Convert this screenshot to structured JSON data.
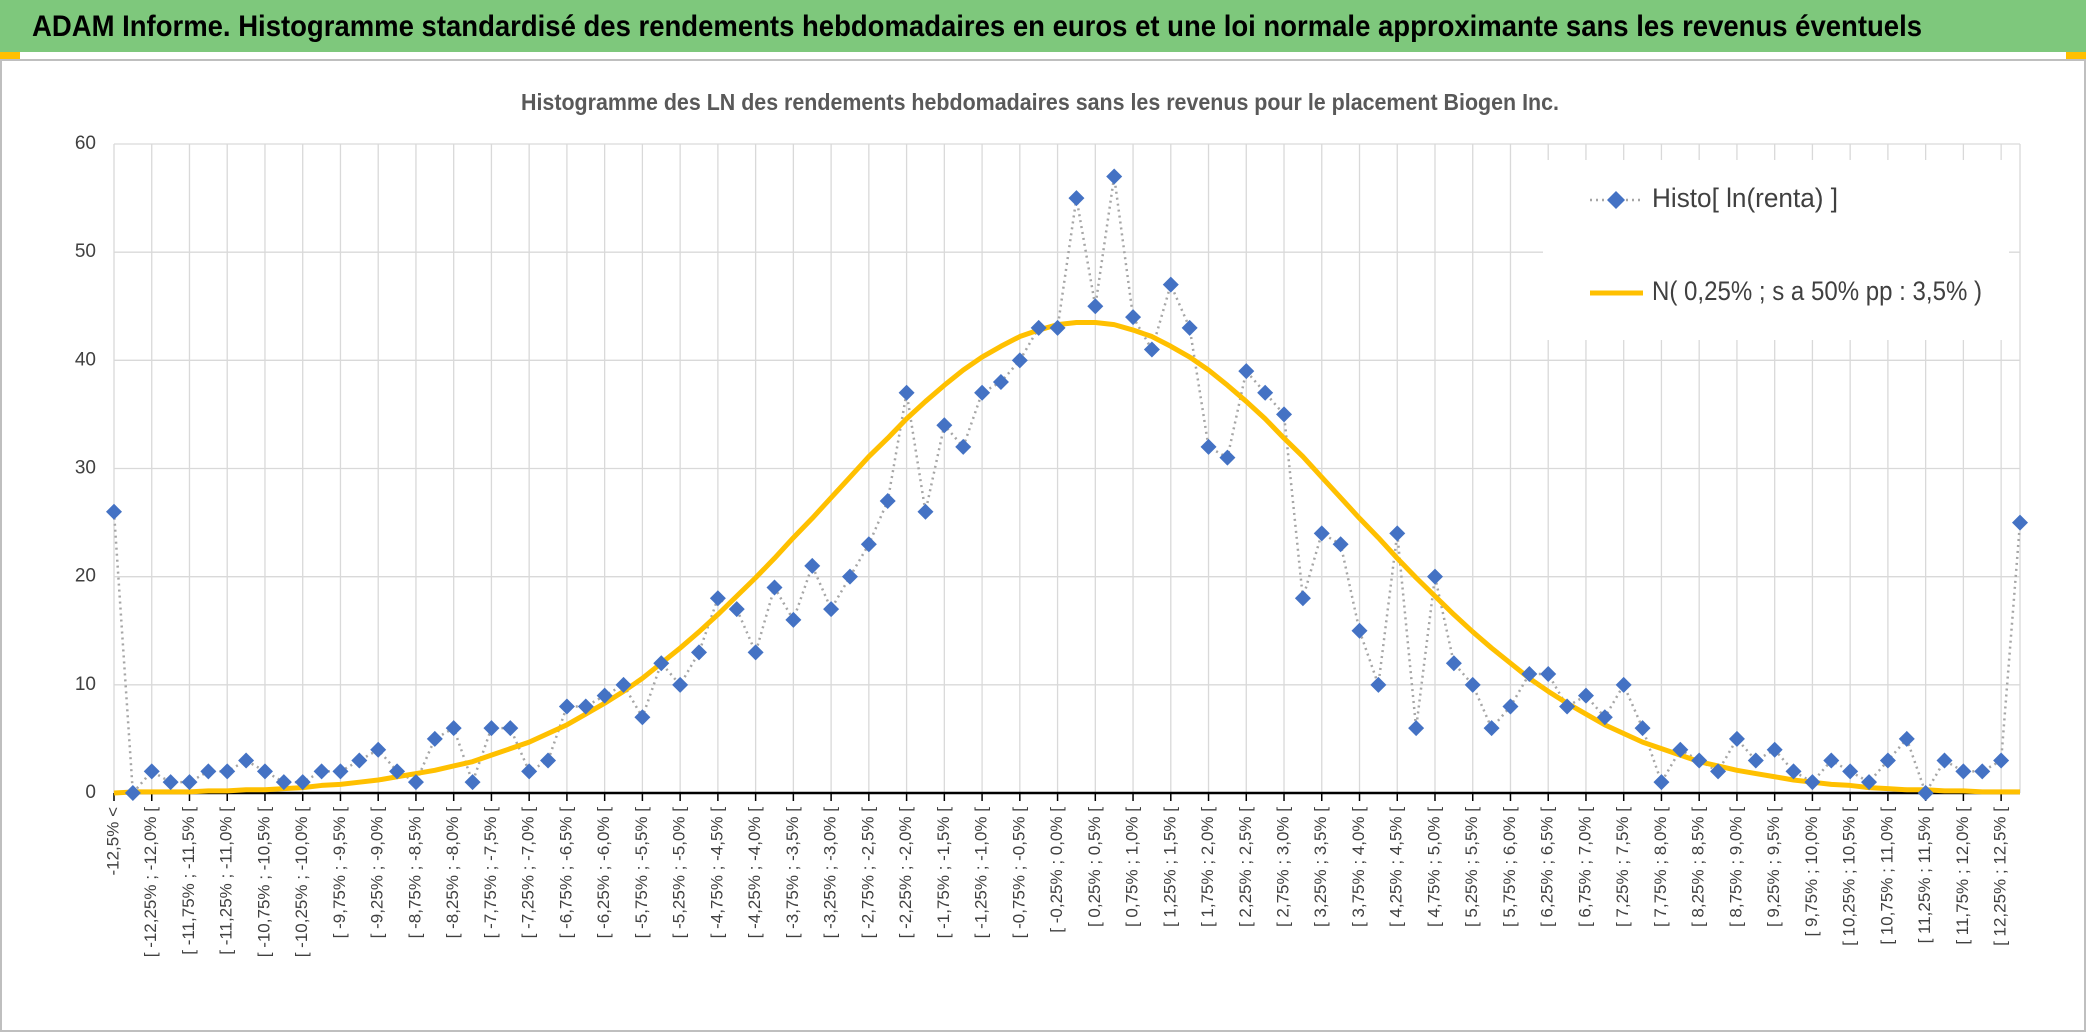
{
  "header": {
    "title": "ADAM Informe. Histogramme standardisé des rendements hebdomadaires en euros et une loi normale approximante sans les revenus éventuels"
  },
  "chart_data": {
    "type": "line",
    "title": "Histogramme des LN des rendements hebdomadaires sans les revenus pour le placement Biogen Inc.",
    "categories": [
      "-12,5% <",
      null,
      "[ -12,25% ; -12,0% [",
      null,
      "[ -11,75% ; -11,5% [",
      null,
      "[ -11,25% ; -11,0% [",
      null,
      "[ -10,75% ; -10,5% [",
      null,
      "[ -10,25% ; -10,0% [",
      null,
      "[ -9,75% ; -9,5% [",
      null,
      "[ -9,25% ; -9,0% [",
      null,
      "[ -8,75% ; -8,5% [",
      null,
      "[ -8,25% ; -8,0% [",
      null,
      "[ -7,75% ; -7,5% [",
      null,
      "[ -7,25% ; -7,0% [",
      null,
      "[ -6,75% ; -6,5% [",
      null,
      "[ -6,25% ; -6,0% [",
      null,
      "[ -5,75% ; -5,5% [",
      null,
      "[ -5,25% ; -5,0% [",
      null,
      "[ -4,75% ; -4,5% [",
      null,
      "[ -4,25% ; -4,0% [",
      null,
      "[ -3,75% ; -3,5% [",
      null,
      "[ -3,25% ; -3,0% [",
      null,
      "[ -2,75% ; -2,5% [",
      null,
      "[ -2,25% ; -2,0% [",
      null,
      "[ -1,75% ; -1,5% [",
      null,
      "[ -1,25% ; -1,0% [",
      null,
      "[ -0,75% ; -0,5% [",
      null,
      "[ -0,25% ; 0,0% [",
      null,
      "[ 0,25% ; 0,5% [",
      null,
      "[ 0,75% ; 1,0% [",
      null,
      "[ 1,25% ; 1,5% [",
      null,
      "[ 1,75% ; 2,0% [",
      null,
      "[ 2,25% ; 2,5% [",
      null,
      "[ 2,75% ; 3,0% [",
      null,
      "[ 3,25% ; 3,5% [",
      null,
      "[ 3,75% ; 4,0% [",
      null,
      "[ 4,25% ; 4,5% [",
      null,
      "[ 4,75% ; 5,0% [",
      null,
      "[ 5,25% ; 5,5% [",
      null,
      "[ 5,75% ; 6,0% [",
      null,
      "[ 6,25% ; 6,5% [",
      null,
      "[ 6,75% ; 7,0% [",
      null,
      "[ 7,25% ; 7,5% [",
      null,
      "[ 7,75% ; 8,0% [",
      null,
      "[ 8,25% ; 8,5% [",
      null,
      "[ 8,75% ; 9,0% [",
      null,
      "[ 9,25% ; 9,5% [",
      null,
      "[ 9,75% ; 10,0% [",
      null,
      "[ 10,25% ; 10,5% [",
      null,
      "[ 10,75% ; 11,0% [",
      null,
      "[ 11,25% ; 11,5% [",
      null,
      "[ 11,75% ; 12,0% [",
      null,
      "[ 12,25% ; 12,5% [",
      null
    ],
    "series": [
      {
        "name": "Histo[ ln(renta) ]",
        "color": "#4472c4",
        "line_color": "#a6a6a6",
        "values": [
          26,
          0,
          2,
          1,
          1,
          2,
          2,
          3,
          2,
          1,
          1,
          2,
          2,
          3,
          4,
          2,
          1,
          5,
          6,
          1,
          6,
          6,
          2,
          3,
          8,
          8,
          9,
          10,
          7,
          12,
          10,
          13,
          18,
          17,
          13,
          19,
          16,
          21,
          17,
          20,
          23,
          27,
          37,
          26,
          34,
          32,
          37,
          38,
          40,
          43,
          43,
          55,
          45,
          57,
          44,
          41,
          47,
          43,
          32,
          31,
          39,
          37,
          35,
          18,
          24,
          23,
          15,
          10,
          24,
          6,
          20,
          12,
          10,
          6,
          8,
          11,
          11,
          8,
          9,
          7,
          10,
          6,
          1,
          4,
          3,
          2,
          5,
          3,
          4,
          2,
          1,
          3,
          2,
          1,
          3,
          5,
          0,
          3,
          2,
          2,
          3,
          25
        ]
      },
      {
        "name": "N( 0,25% ; s a 50% pp : 3,5% )",
        "color": "#ffc000",
        "values": [
          0.0,
          0.1,
          0.1,
          0.1,
          0.1,
          0.2,
          0.2,
          0.3,
          0.3,
          0.4,
          0.5,
          0.7,
          0.8,
          1.0,
          1.2,
          1.5,
          1.8,
          2.1,
          2.5,
          2.9,
          3.5,
          4.1,
          4.7,
          5.5,
          6.3,
          7.3,
          8.3,
          9.4,
          10.6,
          12.0,
          13.4,
          14.9,
          16.5,
          18.2,
          19.9,
          21.7,
          23.6,
          25.4,
          27.3,
          29.2,
          31.1,
          32.8,
          34.6,
          36.2,
          37.7,
          39.1,
          40.3,
          41.3,
          42.2,
          42.8,
          43.3,
          43.5,
          43.5,
          43.3,
          42.8,
          42.2,
          41.3,
          40.3,
          39.1,
          37.7,
          36.2,
          34.6,
          32.8,
          31.1,
          29.2,
          27.3,
          25.4,
          23.6,
          21.7,
          19.9,
          18.2,
          16.5,
          14.9,
          13.4,
          12.0,
          10.6,
          9.4,
          8.3,
          7.3,
          6.3,
          5.5,
          4.7,
          4.1,
          3.5,
          2.9,
          2.5,
          2.1,
          1.8,
          1.5,
          1.2,
          1.0,
          0.8,
          0.7,
          0.5,
          0.4,
          0.3,
          0.3,
          0.2,
          0.2,
          0.1,
          0.1,
          0.1
        ]
      }
    ],
    "ylim": [
      0,
      60
    ],
    "yticks": [
      0,
      10,
      20,
      30,
      40,
      50,
      60
    ],
    "grid": true,
    "legend": "top-right"
  }
}
